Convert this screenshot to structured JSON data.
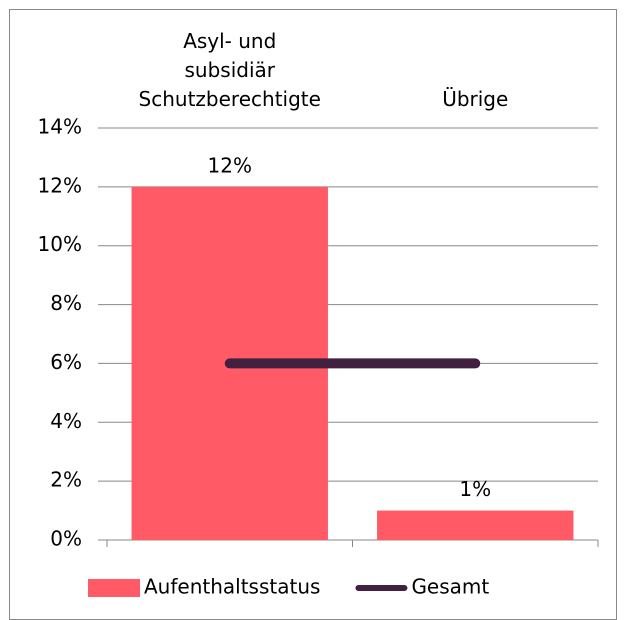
{
  "chart_data": {
    "type": "bar",
    "categories": [
      "Asyl- und\nsubsidiär\nSchutzberechtigte",
      "Übrige"
    ],
    "series": [
      {
        "name": "Aufenthaltsstatus",
        "type": "bar",
        "color": "#ff5a66",
        "values": [
          12,
          1
        ],
        "value_labels": [
          "12%",
          "1%"
        ]
      },
      {
        "name": "Gesamt",
        "type": "line",
        "color": "#42203f",
        "values": [
          6,
          6
        ]
      }
    ],
    "ylim": [
      0,
      14
    ],
    "yticks": [
      {
        "value": 0,
        "label": "0%"
      },
      {
        "value": 2,
        "label": "2%"
      },
      {
        "value": 4,
        "label": "4%"
      },
      {
        "value": 6,
        "label": "6%"
      },
      {
        "value": 8,
        "label": "8%"
      },
      {
        "value": 10,
        "label": "10%"
      },
      {
        "value": 12,
        "label": "12%"
      },
      {
        "value": 14,
        "label": "14%"
      }
    ],
    "grid": true,
    "legend": "bottom"
  }
}
